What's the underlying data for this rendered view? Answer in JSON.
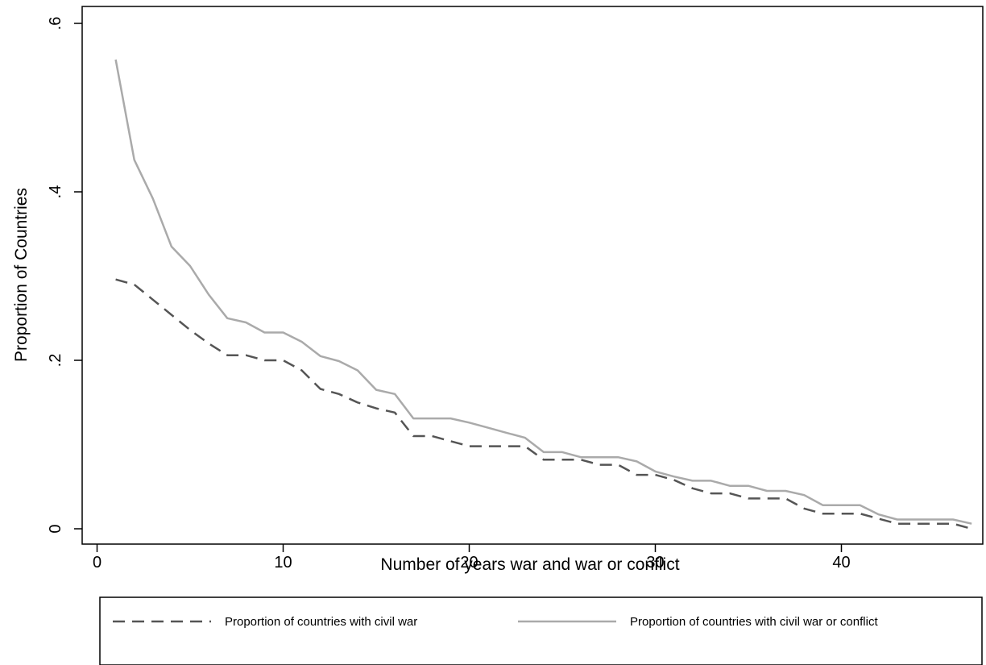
{
  "chart_data": {
    "type": "line",
    "title": "",
    "xlabel": "Number of years war and war or conflict",
    "ylabel": "Proportion of Countries",
    "xlim": [
      -1,
      47
    ],
    "ylim": [
      0,
      0.6
    ],
    "x_ticks": [
      0,
      10,
      20,
      30,
      40
    ],
    "x_tick_labels": [
      "0",
      "10",
      "20",
      "30",
      "40"
    ],
    "y_ticks": [
      0,
      0.2,
      0.4,
      0.6
    ],
    "y_tick_labels": [
      "0",
      ".2",
      ".4",
      ".6"
    ],
    "grid": false,
    "legend_position": "bottom",
    "x": [
      1,
      2,
      3,
      4,
      5,
      6,
      7,
      8,
      9,
      10,
      11,
      12,
      13,
      14,
      15,
      16,
      17,
      18,
      19,
      20,
      21,
      22,
      23,
      24,
      25,
      26,
      27,
      28,
      29,
      30,
      31,
      32,
      33,
      34,
      35,
      36,
      37,
      38,
      39,
      40,
      41,
      42,
      43,
      44,
      45,
      46,
      47
    ],
    "series": [
      {
        "name": "Proportion of countries with civil war",
        "style": "dashed",
        "color": "#555555",
        "values": [
          0.296,
          0.29,
          0.272,
          0.254,
          0.236,
          0.22,
          0.206,
          0.206,
          0.2,
          0.2,
          0.188,
          0.166,
          0.16,
          0.15,
          0.143,
          0.138,
          0.11,
          0.11,
          0.104,
          0.098,
          0.098,
          0.098,
          0.098,
          0.082,
          0.082,
          0.082,
          0.076,
          0.076,
          0.064,
          0.064,
          0.058,
          0.048,
          0.042,
          0.042,
          0.036,
          0.036,
          0.036,
          0.024,
          0.018,
          0.018,
          0.018,
          0.012,
          0.006,
          0.006,
          0.006,
          0.006,
          0.0
        ]
      },
      {
        "name": "Proportion of countries with civil war or conflict",
        "style": "solid",
        "color": "#aaaaaa",
        "values": [
          0.557,
          0.438,
          0.392,
          0.335,
          0.312,
          0.278,
          0.25,
          0.245,
          0.233,
          0.233,
          0.222,
          0.205,
          0.199,
          0.188,
          0.165,
          0.16,
          0.131,
          0.131,
          0.131,
          0.126,
          0.12,
          0.114,
          0.108,
          0.091,
          0.091,
          0.085,
          0.085,
          0.085,
          0.08,
          0.068,
          0.062,
          0.057,
          0.057,
          0.051,
          0.051,
          0.045,
          0.045,
          0.04,
          0.028,
          0.028,
          0.028,
          0.017,
          0.011,
          0.011,
          0.011,
          0.011,
          0.006
        ]
      }
    ]
  }
}
